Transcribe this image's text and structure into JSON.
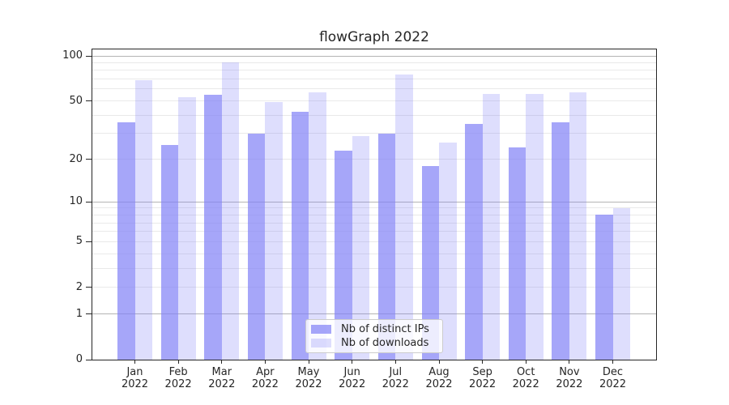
{
  "chart_data": {
    "type": "bar",
    "title": "flowGraph 2022",
    "categories": [
      "Jan",
      "Feb",
      "Mar",
      "Apr",
      "May",
      "Jun",
      "Jul",
      "Aug",
      "Sep",
      "Oct",
      "Nov",
      "Dec"
    ],
    "category_year": "2022",
    "series": [
      {
        "name": "Nb of distinct IPs",
        "key": "distinct-ips",
        "values": [
          36,
          25,
          55,
          30,
          42,
          23,
          30,
          18,
          35,
          24,
          36,
          8
        ],
        "color": "rgba(128,128,246,0.70)"
      },
      {
        "name": "Nb of downloads",
        "key": "downloads",
        "values": [
          69,
          53,
          90,
          49,
          57,
          29,
          75,
          26,
          56,
          56,
          57,
          9
        ],
        "color": "rgba(128,128,246,0.26)"
      }
    ],
    "yscale": "log1p",
    "ylim": [
      0,
      110.4
    ],
    "yticks": [
      0,
      1,
      2,
      5,
      10,
      20,
      50,
      100
    ],
    "major_gridlines": [
      1,
      10,
      100
    ],
    "minor_gridlines": [
      2,
      3,
      4,
      5,
      6,
      7,
      8,
      9,
      20,
      30,
      40,
      50,
      60,
      70,
      80,
      90
    ],
    "grid": true,
    "legend_position": "lower center",
    "xlabel": "",
    "ylabel": ""
  },
  "colors": {
    "major_grid": "#b4b4b4",
    "minor_grid": "#e9e9e9",
    "spine": "#262626",
    "text": "#262626",
    "legend_border": "#cccccc",
    "legend_background": "rgba(255,255,255,0.8)",
    "figure_background": "#ffffff"
  }
}
